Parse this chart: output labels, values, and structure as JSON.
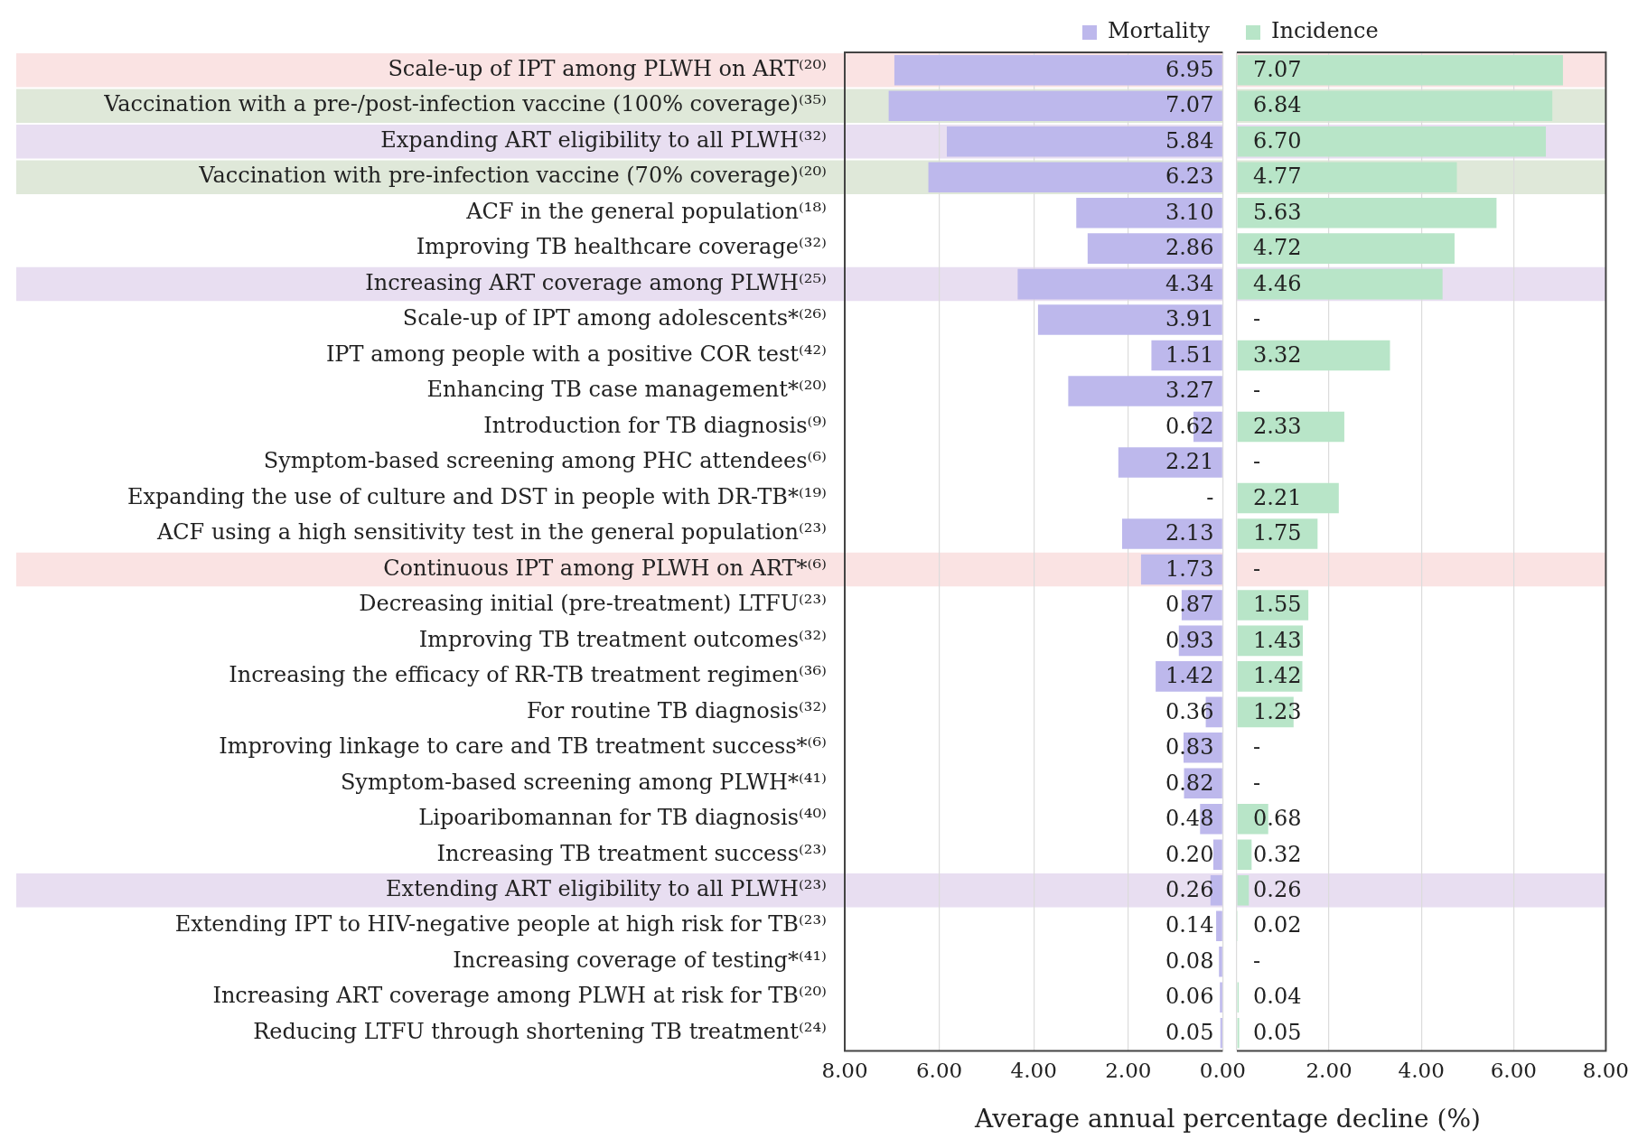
{
  "chart_data": [
    {
      "type": "bar",
      "orientation": "horizontal",
      "xlabel": "Average annual percentage decline (%)",
      "categories": [
        "Scale-up of IPT among PLWH on ART⁽²⁰⁾",
        "Vaccination with a pre-/post-infection vaccine (100% coverage)⁽³⁵⁾",
        "Expanding ART eligibility to all PLWH⁽³²⁾",
        "Vaccination with pre-infection vaccine (70% coverage)⁽²⁰⁾",
        "ACF in the general population⁽¹⁸⁾",
        "Improving TB healthcare coverage⁽³²⁾",
        "Increasing ART coverage among PLWH⁽²⁵⁾",
        "Scale-up of IPT among adolescents*⁽²⁶⁾",
        "IPT among people with a positive COR test⁽⁴²⁾",
        "Enhancing TB case management*⁽²⁰⁾",
        "Introduction for TB diagnosis⁽⁹⁾",
        "Symptom-based screening among PHC attendees⁽⁶⁾",
        "Expanding the use of culture and DST in people with DR-TB*⁽¹⁹⁾",
        "ACF using a high sensitivity test in the general population⁽²³⁾",
        "Continuous IPT among PLWH on ART*⁽⁶⁾",
        "Decreasing initial (pre-treatment) LTFU⁽²³⁾",
        "Improving TB treatment outcomes⁽³²⁾",
        "Increasing the efficacy of RR-TB treatment regimen⁽³⁶⁾",
        "For routine TB diagnosis⁽³²⁾",
        "Improving linkage to care and TB treatment success*⁽⁶⁾",
        "Symptom-based screening among PLWH*⁽⁴¹⁾",
        "Lipoaribomannan for TB diagnosis⁽⁴⁰⁾",
        "Increasing TB treatment success⁽²³⁾",
        "Extending ART eligibility to all PLWH⁽²³⁾",
        "Extending IPT to HIV-negative people at high risk for TB⁽²³⁾",
        "Increasing coverage of testing*⁽⁴¹⁾",
        "Increasing ART coverage among PLWH at risk for TB⁽²⁰⁾",
        "Reducing LTFU through shortening TB treatment⁽²⁴⁾"
      ],
      "series": [
        {
          "name": "Mortality",
          "color": "#bdb8ec",
          "values": [
            6.95,
            7.07,
            5.84,
            6.23,
            3.1,
            2.86,
            4.34,
            3.91,
            1.51,
            3.27,
            0.62,
            2.21,
            null,
            2.13,
            1.73,
            0.87,
            0.93,
            1.42,
            0.36,
            0.83,
            0.82,
            0.48,
            0.2,
            0.26,
            0.14,
            0.08,
            0.06,
            0.05
          ],
          "value_labels": [
            "6.95",
            "7.07",
            "5.84",
            "6.23",
            "3.10",
            "2.86",
            "4.34",
            "3.91",
            "1.51",
            "3.27",
            "0.62",
            "2.21",
            "-",
            "2.13",
            "1.73",
            "0.87",
            "0.93",
            "1.42",
            "0.36",
            "0.83",
            "0.82",
            "0.48",
            "0.20",
            "0.26",
            "0.14",
            "0.08",
            "0.06",
            "0.05"
          ]
        }
      ],
      "xlim": [
        8,
        0
      ],
      "xticks": [
        {
          "value": 8,
          "label": "8.00"
        },
        {
          "value": 6,
          "label": "6.00"
        },
        {
          "value": 4,
          "label": "4.00"
        },
        {
          "value": 2,
          "label": "2.00"
        },
        {
          "value": 0,
          "label": "0.00"
        }
      ],
      "bands": [
        {
          "axis": "y",
          "from": "Scale-up of IPT among PLWH on ART⁽²⁰⁾",
          "to": "Scale-up of IPT among PLWH on ART⁽²⁰⁾",
          "color": "#f0a8a8"
        },
        {
          "axis": "y",
          "from": "Vaccination with a pre-/post-infection vaccine (100% coverage)⁽³⁵⁾",
          "to": "Vaccination with a pre-/post-infection vaccine (100% coverage)⁽³⁵⁾",
          "color": "#9ab88a"
        },
        {
          "axis": "y",
          "from": "Expanding ART eligibility to all PLWH⁽³²⁾",
          "to": "Expanding ART eligibility to all PLWH⁽³²⁾",
          "color": "#b898d4"
        },
        {
          "axis": "y",
          "from": "Vaccination with pre-infection vaccine (70% coverage)⁽²⁰⁾",
          "to": "Vaccination with pre-infection vaccine (70% coverage)⁽²⁰⁾",
          "color": "#9ab88a"
        },
        {
          "axis": "y",
          "from": "Increasing ART coverage among PLWH⁽²⁵⁾",
          "to": "Increasing ART coverage among PLWH⁽²⁵⁾",
          "color": "#b898d4"
        },
        {
          "axis": "y",
          "from": "Continuous IPT among PLWH on ART*⁽⁶⁾",
          "to": "Continuous IPT among PLWH on ART*⁽⁶⁾",
          "color": "#f0a8a8"
        },
        {
          "axis": "y",
          "from": "Extending ART eligibility to all PLWH⁽²³⁾",
          "to": "Extending ART eligibility to all PLWH⁽²³⁾",
          "color": "#b898d4"
        }
      ],
      "grid": "x",
      "legend": "top right"
    },
    {
      "type": "bar",
      "orientation": "horizontal",
      "categories": [
        "Scale-up of IPT among PLWH on ART⁽²⁰⁾",
        "Vaccination with a pre-/post-infection vaccine (100% coverage)⁽³⁵⁾",
        "Expanding ART eligibility to all PLWH⁽³²⁾",
        "Vaccination with pre-infection vaccine (70% coverage)⁽²⁰⁾",
        "ACF in the general population⁽¹⁸⁾",
        "Improving TB healthcare coverage⁽³²⁾",
        "Increasing ART coverage among PLWH⁽²⁵⁾",
        "Scale-up of IPT among adolescents*⁽²⁶⁾",
        "IPT among people with a positive COR test⁽⁴²⁾",
        "Enhancing TB case management*⁽²⁰⁾",
        "Introduction for TB diagnosis⁽⁹⁾",
        "Symptom-based screening among PHC attendees⁽⁶⁾",
        "Expanding the use of culture and DST in people with DR-TB*⁽¹⁹⁾",
        "ACF using a high sensitivity test in the general population⁽²³⁾",
        "Continuous IPT among PLWH on ART*⁽⁶⁾",
        "Decreasing initial (pre-treatment) LTFU⁽²³⁾",
        "Improving TB treatment outcomes⁽³²⁾",
        "Increasing the efficacy of RR-TB treatment regimen⁽³⁶⁾",
        "For routine TB diagnosis⁽³²⁾",
        "Improving linkage to care and TB treatment success*⁽⁶⁾",
        "Symptom-based screening among PLWH*⁽⁴¹⁾",
        "Lipoaribomannan for TB diagnosis⁽⁴⁰⁾",
        "Increasing TB treatment success⁽²³⁾",
        "Extending ART eligibility to all PLWH⁽²³⁾",
        "Extending IPT to HIV-negative people at high risk for TB⁽²³⁾",
        "Increasing coverage of testing*⁽⁴¹⁾",
        "Increasing ART coverage among PLWH at risk for TB⁽²⁰⁾",
        "Reducing LTFU through shortening TB treatment⁽²⁴⁾"
      ],
      "series": [
        {
          "name": "Incidence",
          "color": "#b8e5c8",
          "values": [
            7.07,
            6.84,
            6.7,
            4.77,
            5.63,
            4.72,
            4.46,
            null,
            3.32,
            null,
            2.33,
            null,
            2.21,
            1.75,
            null,
            1.55,
            1.43,
            1.42,
            1.23,
            null,
            null,
            0.68,
            0.32,
            0.26,
            0.02,
            null,
            0.04,
            0.05
          ],
          "value_labels": [
            "7.07",
            "6.84",
            "6.70",
            "4.77",
            "5.63",
            "4.72",
            "4.46",
            "-",
            "3.32",
            "-",
            "2.33",
            "-",
            "2.21",
            "1.75",
            "-",
            "1.55",
            "1.43",
            "1.42",
            "1.23",
            "-",
            "-",
            "0.68",
            "0.32",
            "0.26",
            "0.02",
            "-",
            "0.04",
            "0.05"
          ]
        }
      ],
      "xlim": [
        0,
        8
      ],
      "xticks": [
        {
          "value": 0,
          "label": null
        },
        {
          "value": 2,
          "label": "2.00"
        },
        {
          "value": 4,
          "label": "4.00"
        },
        {
          "value": 6,
          "label": "6.00"
        },
        {
          "value": 8,
          "label": "8.00"
        }
      ],
      "bands": [
        {
          "axis": "y",
          "from": "Scale-up of IPT among PLWH on ART⁽²⁰⁾",
          "to": "Scale-up of IPT among PLWH on ART⁽²⁰⁾",
          "color": "#f0a8a8"
        },
        {
          "axis": "y",
          "from": "Vaccination with a pre-/post-infection vaccine (100% coverage)⁽³⁵⁾",
          "to": "Vaccination with a pre-/post-infection vaccine (100% coverage)⁽³⁵⁾",
          "color": "#9ab88a"
        },
        {
          "axis": "y",
          "from": "Expanding ART eligibility to all PLWH⁽³²⁾",
          "to": "Expanding ART eligibility to all PLWH⁽³²⁾",
          "color": "#b898d4"
        },
        {
          "axis": "y",
          "from": "Vaccination with pre-infection vaccine (70% coverage)⁽²⁰⁾",
          "to": "Vaccination with pre-infection vaccine (70% coverage)⁽²⁰⁾",
          "color": "#9ab88a"
        },
        {
          "axis": "y",
          "from": "Increasing ART coverage among PLWH⁽²⁵⁾",
          "to": "Increasing ART coverage among PLWH⁽²⁵⁾",
          "color": "#b898d4"
        },
        {
          "axis": "y",
          "from": "Continuous IPT among PLWH on ART*⁽⁶⁾",
          "to": "Continuous IPT among PLWH on ART*⁽⁶⁾",
          "color": "#f0a8a8"
        },
        {
          "axis": "y",
          "from": "Extending ART eligibility to all PLWH⁽²³⁾",
          "to": "Extending ART eligibility to all PLWH⁽²³⁾",
          "color": "#b898d4"
        }
      ],
      "grid": "x",
      "legend": "top left",
      "tick_labels": "x"
    }
  ]
}
